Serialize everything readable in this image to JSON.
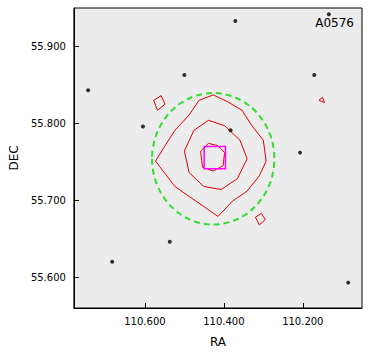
{
  "chart_data": {
    "type": "scatter",
    "title": "A0576",
    "x_label": "RA",
    "y_label": "DEC",
    "xlim": [
      110.78,
      110.05
    ],
    "xticks": [
      {
        "value": 110.6,
        "label": "110.600"
      },
      {
        "value": 110.4,
        "label": "110.400"
      },
      {
        "value": 110.2,
        "label": "110.200"
      }
    ],
    "ylim": [
      55.56,
      55.95
    ],
    "yticks": [
      {
        "value": 55.6,
        "label": "55.600"
      },
      {
        "value": 55.7,
        "label": "55.700"
      },
      {
        "value": 55.8,
        "label": "55.800"
      },
      {
        "value": 55.9,
        "label": "55.900"
      }
    ],
    "grid": false,
    "stars": {
      "color": "#000000",
      "points": [
        [
          110.605,
          55.796
        ],
        [
          110.207,
          55.762
        ],
        [
          110.371,
          55.933
        ],
        [
          110.134,
          55.942
        ],
        [
          110.537,
          55.646
        ],
        [
          110.383,
          55.791
        ],
        [
          110.744,
          55.843
        ],
        [
          110.085,
          55.593
        ],
        [
          110.683,
          55.62
        ],
        [
          110.171,
          55.863
        ],
        [
          110.5,
          55.863
        ]
      ]
    },
    "contours": {
      "color": "#e00000",
      "lines": [
        [
          [
            110.549,
            55.771
          ],
          [
            110.524,
            55.791
          ],
          [
            110.488,
            55.811
          ],
          [
            110.463,
            55.83
          ],
          [
            110.427,
            55.837
          ],
          [
            110.39,
            55.828
          ],
          [
            110.354,
            55.817
          ],
          [
            110.329,
            55.797
          ],
          [
            110.3,
            55.778
          ],
          [
            110.293,
            55.751
          ],
          [
            110.31,
            55.732
          ],
          [
            110.341,
            55.712
          ],
          [
            110.378,
            55.699
          ],
          [
            110.415,
            55.679
          ],
          [
            110.451,
            55.692
          ],
          [
            110.488,
            55.705
          ],
          [
            110.524,
            55.718
          ],
          [
            110.554,
            55.738
          ],
          [
            110.573,
            55.751
          ]
        ],
        [
          [
            110.5,
            55.764
          ],
          [
            110.476,
            55.791
          ],
          [
            110.439,
            55.804
          ],
          [
            110.398,
            55.797
          ],
          [
            110.359,
            55.778
          ],
          [
            110.341,
            55.754
          ],
          [
            110.366,
            55.728
          ],
          [
            110.407,
            55.714
          ],
          [
            110.451,
            55.718
          ],
          [
            110.488,
            55.736
          ]
        ],
        [
          [
            110.459,
            55.764
          ],
          [
            110.439,
            55.774
          ],
          [
            110.415,
            55.771
          ],
          [
            110.398,
            55.762
          ],
          [
            110.402,
            55.745
          ],
          [
            110.427,
            55.738
          ],
          [
            110.454,
            55.743
          ]
        ],
        [
          [
            110.578,
            55.83
          ],
          [
            110.559,
            55.836
          ],
          [
            110.549,
            55.825
          ],
          [
            110.568,
            55.817
          ]
        ],
        [
          [
            110.32,
            55.678
          ],
          [
            110.305,
            55.683
          ],
          [
            110.295,
            55.675
          ],
          [
            110.31,
            55.668
          ]
        ],
        [
          [
            110.159,
            55.83
          ],
          [
            110.15,
            55.834
          ],
          [
            110.145,
            55.827
          ]
        ]
      ]
    },
    "circle": {
      "color": "#33dd33",
      "line_style": "dashed",
      "center": [
        110.427,
        55.754
      ],
      "radius_ra": 0.155,
      "radius_dec": 0.0855
    },
    "box": {
      "color": "#ff00ff",
      "ra": [
        110.45,
        110.396
      ],
      "dec": [
        55.741,
        55.77
      ]
    }
  }
}
